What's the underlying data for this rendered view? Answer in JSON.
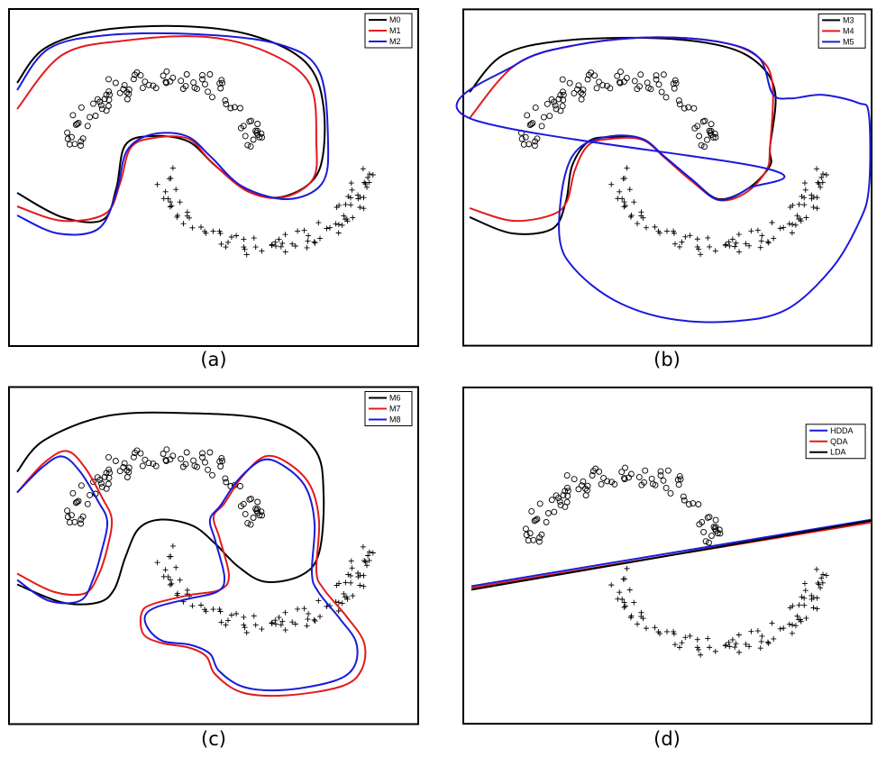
{
  "colors": {
    "black": "#000000",
    "red": "#e31a1c",
    "blue": "#1a1adb"
  },
  "chart_data": [
    {
      "panel": "a",
      "type": "scatter",
      "caption": "(a)",
      "legend": [
        "M0",
        "M1",
        "M2"
      ],
      "legend_position": "top-right",
      "series_colors": [
        "black",
        "red",
        "blue"
      ]
    },
    {
      "panel": "b",
      "type": "scatter",
      "caption": "(b)",
      "legend": [
        "M3",
        "M4",
        "M5"
      ],
      "legend_position": "top-right",
      "series_colors": [
        "black",
        "red",
        "blue"
      ]
    },
    {
      "panel": "c",
      "type": "scatter",
      "caption": "(c)",
      "legend": [
        "M6",
        "M7",
        "M8"
      ],
      "legend_position": "top-right",
      "series_colors": [
        "black",
        "red",
        "blue"
      ]
    },
    {
      "panel": "d",
      "type": "scatter",
      "caption": "(d)",
      "legend": [
        "HDDA",
        "QDA",
        "LDA"
      ],
      "legend_position": "top-right",
      "series_colors": [
        "blue",
        "red",
        "black"
      ]
    }
  ]
}
